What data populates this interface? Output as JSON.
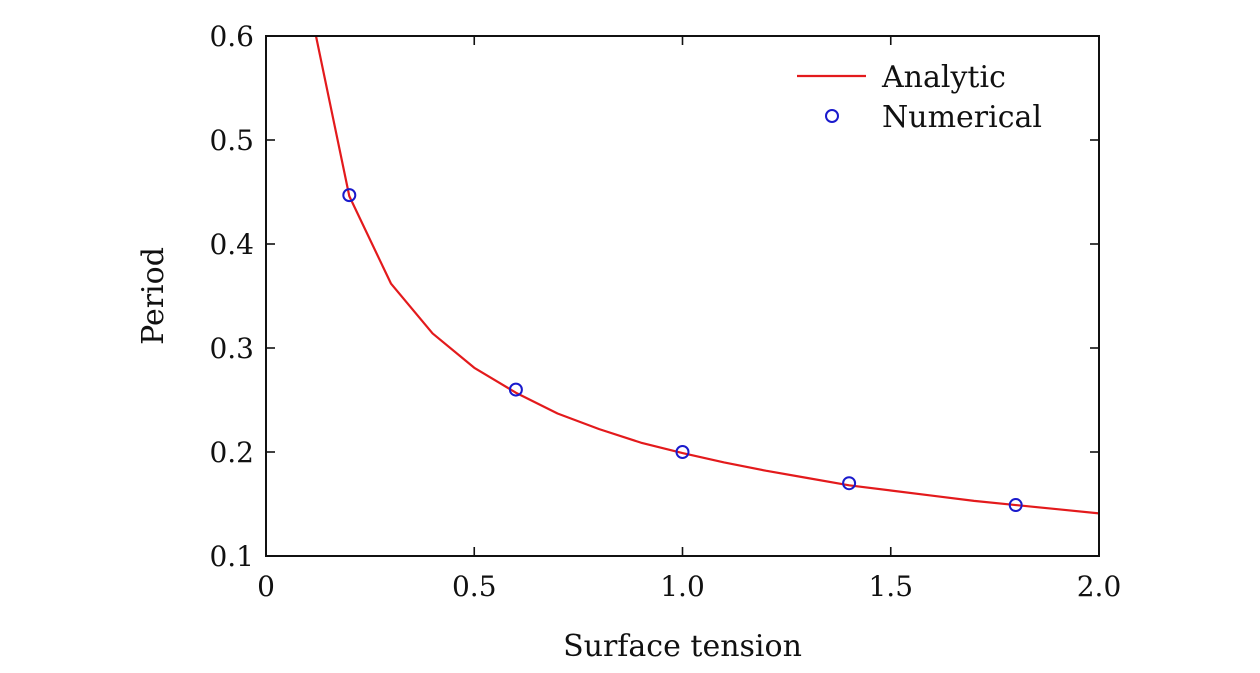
{
  "chart_data": {
    "type": "line",
    "title": "",
    "xlabel": "Surface tension",
    "ylabel": "Period",
    "xlim": [
      0,
      2.0
    ],
    "ylim": [
      0.1,
      0.6
    ],
    "xticks": [
      0,
      0.5,
      1.0,
      1.5,
      2.0
    ],
    "xtick_labels": [
      "0",
      "0.5",
      "1.0",
      "1.5",
      "2.0"
    ],
    "yticks": [
      0.1,
      0.2,
      0.3,
      0.4,
      0.5,
      0.6
    ],
    "ytick_labels": [
      "0.1",
      "0.2",
      "0.3",
      "0.4",
      "0.5",
      "0.6"
    ],
    "grid": false,
    "legend_position": "top-right",
    "series": [
      {
        "name": "Analytic",
        "kind": "line",
        "color": "#e31a1c",
        "x": [
          0.12,
          0.2,
          0.3,
          0.4,
          0.5,
          0.6,
          0.7,
          0.8,
          0.9,
          1.0,
          1.1,
          1.2,
          1.3,
          1.4,
          1.5,
          1.6,
          1.7,
          1.8,
          1.9,
          2.0
        ],
        "y": [
          0.6,
          0.446,
          0.362,
          0.314,
          0.281,
          0.257,
          0.237,
          0.222,
          0.209,
          0.199,
          0.19,
          0.182,
          0.175,
          0.168,
          0.163,
          0.158,
          0.153,
          0.149,
          0.145,
          0.141
        ]
      },
      {
        "name": "Numerical",
        "kind": "scatter",
        "color": "#1a1acc",
        "marker": "open-circle",
        "x": [
          0.2,
          0.6,
          1.0,
          1.4,
          1.8
        ],
        "y": [
          0.447,
          0.26,
          0.2,
          0.17,
          0.149
        ]
      }
    ]
  }
}
